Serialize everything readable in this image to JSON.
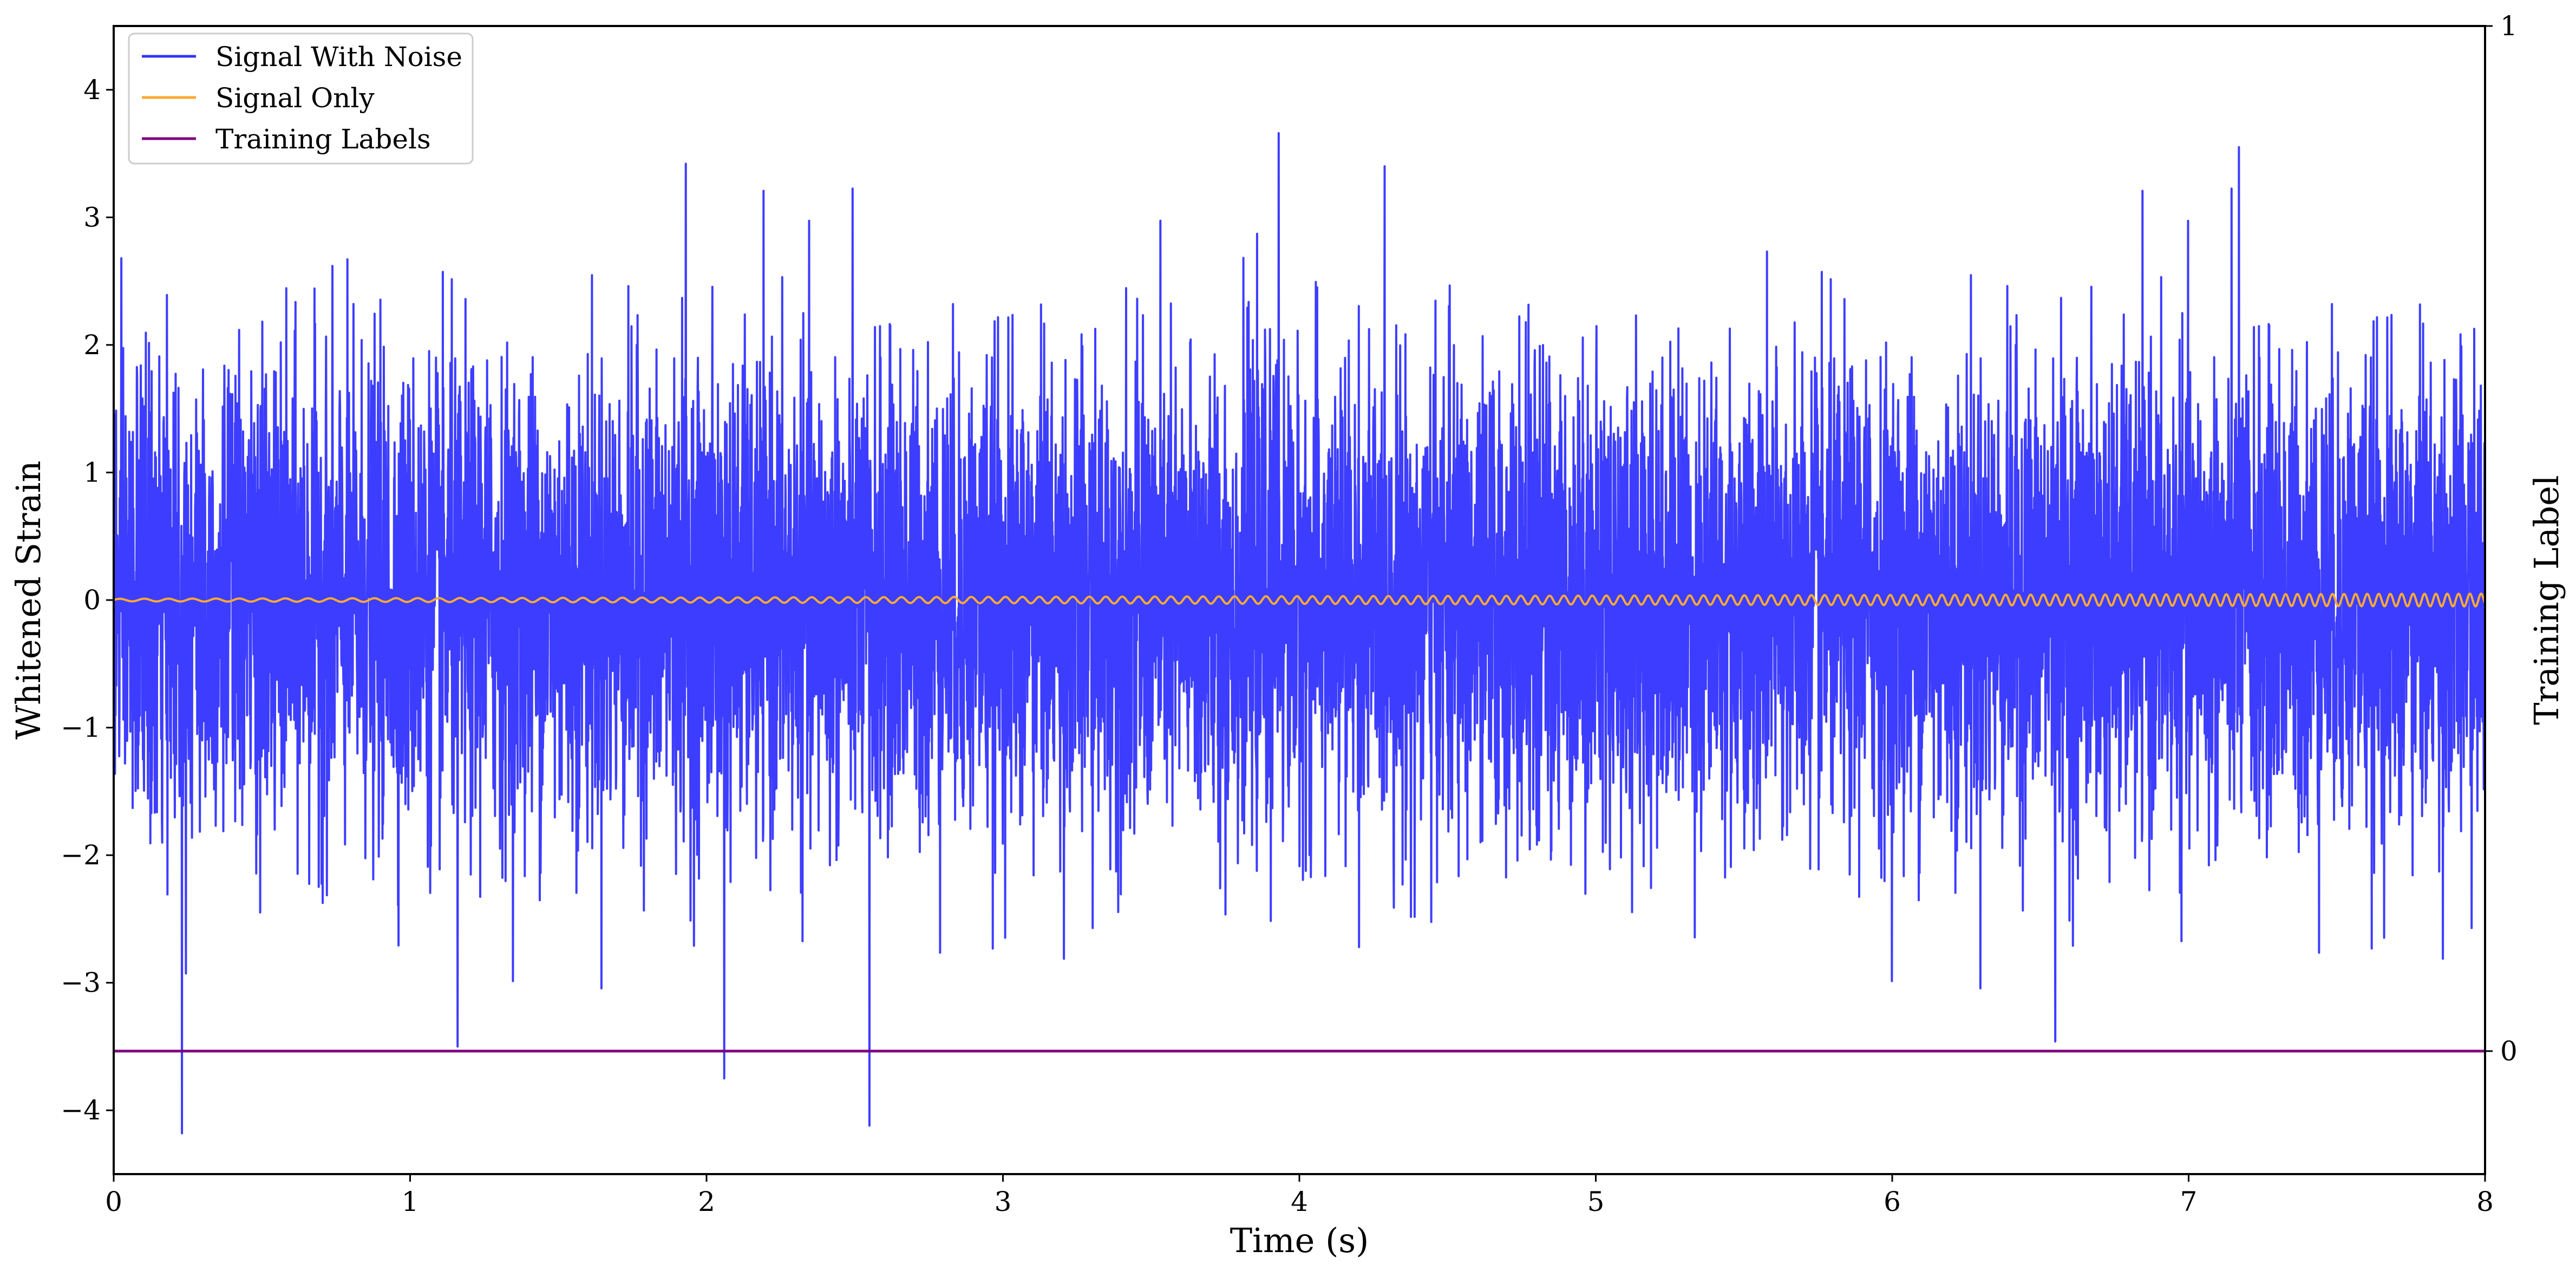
{
  "chart_data": {
    "type": "line",
    "title": "",
    "xlabel": "Time (s)",
    "ylabel": "Whitened Strain",
    "y2label": "Training Label",
    "xlim": [
      0,
      8
    ],
    "ylim": [
      -4.5,
      4.5
    ],
    "y2lim": [
      -0.12,
      1.0
    ],
    "xticks": [
      0,
      1,
      2,
      3,
      4,
      5,
      6,
      7,
      8
    ],
    "yticks": [
      -4,
      -3,
      -2,
      -1,
      0,
      1,
      2,
      3,
      4
    ],
    "y2ticks": [
      0,
      1
    ],
    "xtick_labels": [
      "0",
      "1",
      "2",
      "3",
      "4",
      "5",
      "6",
      "7",
      "8"
    ],
    "ytick_labels": [
      "−4",
      "−3",
      "−2",
      "−1",
      "0",
      "1",
      "2",
      "3",
      "4"
    ],
    "y2tick_labels": [
      "0",
      "1"
    ],
    "grid": false,
    "legend_position": "top-left",
    "series": [
      {
        "name": "Signal With Noise",
        "color": "#3333ff",
        "axis": "left",
        "description_stats": {
          "mean": 0,
          "std": 0.9
        },
        "notable_extremes": [
          {
            "x": 0.23,
            "y": -4.18
          },
          {
            "x": 2.55,
            "y": -4.12
          },
          {
            "x": 2.06,
            "y": -3.75
          },
          {
            "x": 3.93,
            "y": 3.66
          },
          {
            "x": 7.17,
            "y": 3.55
          },
          {
            "x": 6.55,
            "y": -3.46
          },
          {
            "x": 1.93,
            "y": 3.42
          },
          {
            "x": 1.16,
            "y": -3.5
          }
        ]
      },
      {
        "name": "Signal Only",
        "color": "#ffaa33",
        "axis": "left",
        "oscillation": {
          "amplitude_start": 0.01,
          "amplitude_end": 0.05
        }
      },
      {
        "name": "Training Labels",
        "color": "#800080",
        "axis": "right",
        "x": [
          0,
          8
        ],
        "y": [
          0,
          0
        ]
      }
    ]
  }
}
